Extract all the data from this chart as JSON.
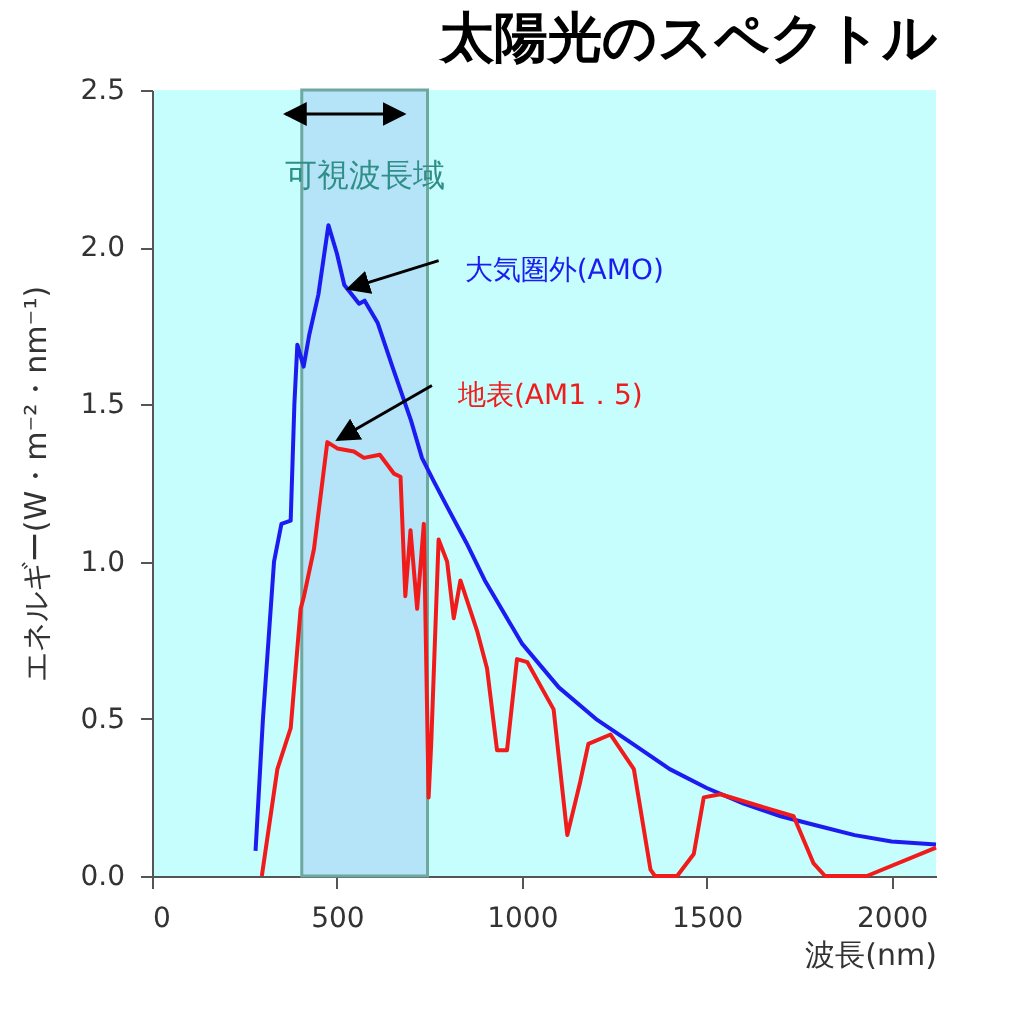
{
  "chart_data": {
    "type": "line",
    "title": "太陽光のスペクトル",
    "xlabel": "波長(nm)",
    "ylabel": "エネルギー(W・m⁻²・nm⁻¹)",
    "xlim": [
      0,
      2120
    ],
    "xticks": [
      0,
      500,
      1000,
      1500,
      2000
    ],
    "ylim": [
      0,
      2.5
    ],
    "yticks": [
      {
        "value": 0,
        "label": "0.0"
      },
      0.5,
      {
        "value": 1,
        "label": "1.0"
      },
      1.5,
      {
        "value": 2,
        "label": "2.0"
      },
      2.5
    ],
    "grid": false,
    "legend": false,
    "marker": "none",
    "line_style": "solid",
    "bands": [
      {
        "axis": "x",
        "from": 405,
        "to": 745,
        "label": "可視波長域",
        "color": "#b5e3f7"
      }
    ],
    "series": [
      {
        "name": "大気圏外(AMO)",
        "color": "#1c1cf0",
        "x": [
          280,
          300,
          330,
          350,
          375,
          385,
          393,
          410,
          425,
          450,
          477,
          500,
          520,
          560,
          575,
          610,
          650,
          700,
          730,
          760,
          800,
          850,
          900,
          1000,
          1100,
          1200,
          1300,
          1400,
          1500,
          1600,
          1700,
          1800,
          1900,
          2000,
          2120
        ],
        "values": [
          0.08,
          0.5,
          1.0,
          1.12,
          1.13,
          1.5,
          1.69,
          1.62,
          1.72,
          1.85,
          2.07,
          1.98,
          1.88,
          1.82,
          1.83,
          1.76,
          1.62,
          1.45,
          1.33,
          1.26,
          1.17,
          1.06,
          0.94,
          0.74,
          0.6,
          0.5,
          0.42,
          0.34,
          0.28,
          0.23,
          0.19,
          0.16,
          0.13,
          0.11,
          0.1
        ]
      },
      {
        "name": "地表(AM1．5)",
        "color": "#f01c1c",
        "x": [
          297,
          339,
          375,
          402,
          411,
          438,
          474,
          501,
          546,
          573,
          616,
          654,
          672,
          685,
          699,
          717,
          735,
          748,
          755,
          775,
          798,
          816,
          834,
          879,
          906,
          933,
          960,
          987,
          1015,
          1086,
          1123,
          1158,
          1180,
          1240,
          1303,
          1348,
          1360,
          1420,
          1465,
          1492,
          1537,
          1735,
          1789,
          1820,
          1933,
          2120
        ],
        "values": [
          0,
          0.34,
          0.47,
          0.85,
          0.89,
          1.04,
          1.38,
          1.36,
          1.35,
          1.33,
          1.34,
          1.28,
          1.27,
          0.89,
          1.1,
          0.85,
          1.12,
          0.25,
          0.42,
          1.07,
          1.0,
          0.82,
          0.94,
          0.78,
          0.66,
          0.4,
          0.4,
          0.69,
          0.68,
          0.53,
          0.13,
          0.3,
          0.42,
          0.45,
          0.34,
          0.02,
          0,
          0,
          0.07,
          0.25,
          0.26,
          0.19,
          0.04,
          0,
          0,
          0.09
        ]
      }
    ]
  }
}
